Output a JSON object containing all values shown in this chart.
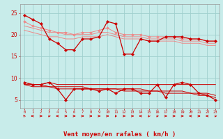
{
  "x": [
    0,
    1,
    2,
    3,
    4,
    5,
    6,
    7,
    8,
    9,
    10,
    11,
    12,
    13,
    14,
    15,
    16,
    17,
    18,
    19,
    20,
    21,
    22,
    23
  ],
  "rafales": [
    24.5,
    23.5,
    22.5,
    19.0,
    18.0,
    16.5,
    16.5,
    19.0,
    19.0,
    19.5,
    23.0,
    22.5,
    15.5,
    15.5,
    19.0,
    18.5,
    18.5,
    19.5,
    19.5,
    19.5,
    19.0,
    19.0,
    18.5,
    18.5
  ],
  "vent_max": [
    23.0,
    22.0,
    21.5,
    21.0,
    20.5,
    20.5,
    20.0,
    20.5,
    20.5,
    21.0,
    21.5,
    20.5,
    20.0,
    20.0,
    20.0,
    19.5,
    19.5,
    19.5,
    19.5,
    19.0,
    19.0,
    19.0,
    18.5,
    18.5
  ],
  "vent_moy_top": [
    22.0,
    21.5,
    21.0,
    20.5,
    20.5,
    20.0,
    20.0,
    20.0,
    20.0,
    20.5,
    20.5,
    20.0,
    19.5,
    19.5,
    19.5,
    19.0,
    19.0,
    19.0,
    19.0,
    18.5,
    18.5,
    18.5,
    18.0,
    18.0
  ],
  "vent_moy_bot": [
    21.0,
    20.5,
    20.0,
    19.5,
    19.5,
    19.0,
    19.0,
    19.5,
    19.5,
    19.5,
    20.0,
    19.5,
    19.0,
    19.0,
    19.0,
    18.5,
    18.5,
    18.5,
    18.5,
    18.0,
    18.0,
    18.0,
    17.5,
    17.5
  ],
  "moyen": [
    9.0,
    8.5,
    8.5,
    9.0,
    7.5,
    5.0,
    7.5,
    7.5,
    7.5,
    7.0,
    7.5,
    6.5,
    7.5,
    7.5,
    6.5,
    6.5,
    8.5,
    5.5,
    8.5,
    9.0,
    8.5,
    6.5,
    6.0,
    5.0
  ],
  "moyen_max": [
    9.0,
    8.5,
    8.5,
    9.0,
    8.5,
    8.5,
    8.5,
    8.5,
    8.5,
    8.5,
    8.5,
    8.5,
    8.5,
    8.5,
    8.5,
    8.5,
    8.5,
    8.5,
    8.5,
    8.5,
    8.5,
    8.5,
    8.5,
    8.5
  ],
  "moyen_min": [
    8.5,
    8.0,
    8.0,
    8.0,
    7.5,
    7.5,
    7.5,
    7.5,
    7.5,
    7.5,
    7.5,
    7.5,
    7.0,
    7.0,
    7.0,
    7.0,
    7.0,
    6.5,
    6.5,
    6.5,
    6.5,
    6.0,
    6.0,
    5.5
  ],
  "moyen_trend": [
    8.5,
    8.5,
    8.5,
    8.0,
    8.0,
    8.0,
    8.0,
    8.0,
    7.5,
    7.5,
    7.5,
    7.5,
    7.5,
    7.5,
    7.5,
    7.0,
    7.0,
    7.0,
    7.0,
    7.0,
    6.5,
    6.5,
    6.5,
    6.0
  ],
  "background_color": "#c8ecea",
  "grid_color": "#a0d0ce",
  "line_color_dark": "#cc0000",
  "line_color_light": "#ee8888",
  "xlabel": "Vent moyen/en rafales ( km/h )",
  "ylim": [
    3,
    27
  ],
  "yticks": [
    5,
    10,
    15,
    20,
    25
  ],
  "label_fontsize": 6.5
}
